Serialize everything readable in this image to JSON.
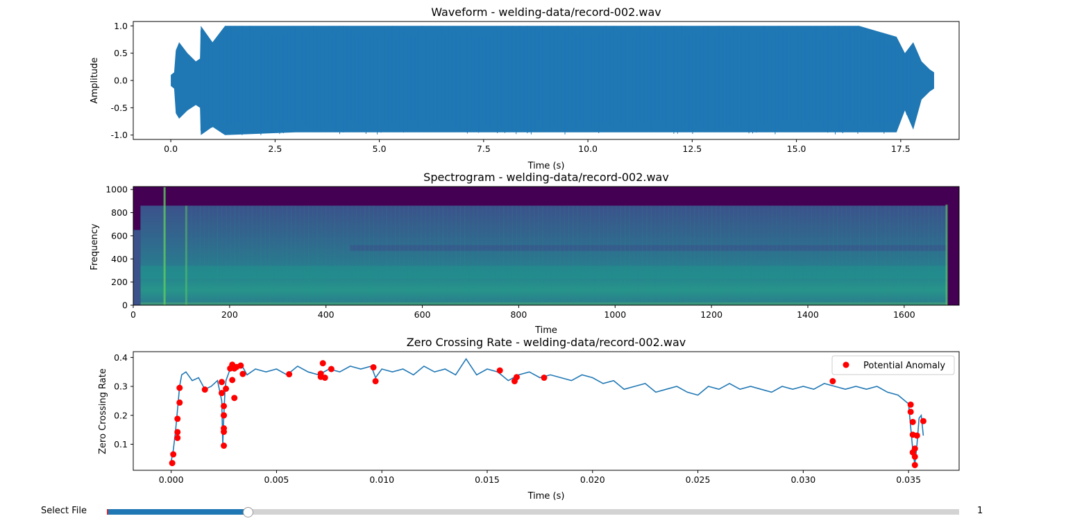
{
  "controls": {
    "label": "Select File",
    "value_label": "1",
    "slider_fraction": 0.165,
    "accent_color": "#1f77b4"
  },
  "chart_data": [
    {
      "type": "line",
      "title": "Waveform - welding-data/record-002.wav",
      "xlabel": "Time (s)",
      "ylabel": "Amplitude",
      "xlim": [
        -0.9,
        18.9
      ],
      "ylim": [
        -1.08,
        1.08
      ],
      "xticks": [
        "0.0",
        "2.5",
        "5.0",
        "7.5",
        "10.0",
        "12.5",
        "15.0",
        "17.5"
      ],
      "xtick_values": [
        0,
        2.5,
        5,
        7.5,
        10,
        12.5,
        15,
        17.5
      ],
      "yticks": [
        "-1.0",
        "-0.5",
        "0.0",
        "0.5",
        "1.0"
      ],
      "ytick_values": [
        -1,
        -0.5,
        0,
        0.5,
        1
      ],
      "color": "#1f77b4",
      "envelope": {
        "t": [
          0.0,
          0.08,
          0.12,
          0.2,
          0.4,
          0.6,
          0.7,
          0.72,
          1.0,
          1.3,
          3.0,
          6.0,
          9.0,
          12.0,
          15.0,
          16.5,
          17.4,
          17.6,
          17.8,
          18.0,
          18.2,
          18.3
        ],
        "upper": [
          0.1,
          0.15,
          0.55,
          0.7,
          0.5,
          0.35,
          0.4,
          1.0,
          0.7,
          1.0,
          1.0,
          1.0,
          1.0,
          1.0,
          1.0,
          1.0,
          0.8,
          0.5,
          0.7,
          0.35,
          0.2,
          0.15
        ],
        "lower": [
          -0.1,
          -0.15,
          -0.6,
          -0.7,
          -0.55,
          -0.45,
          -0.5,
          -1.0,
          -0.85,
          -1.0,
          -0.95,
          -0.95,
          -0.95,
          -0.95,
          -0.95,
          -0.95,
          -0.95,
          -0.55,
          -0.9,
          -0.35,
          -0.2,
          -0.15
        ]
      }
    },
    {
      "type": "heatmap",
      "title": "Spectrogram - welding-data/record-002.wav",
      "xlabel": "Time",
      "ylabel": "Frequency",
      "xlim": [
        0,
        1714
      ],
      "ylim": [
        0,
        1025
      ],
      "xticks": [
        "0",
        "200",
        "400",
        "600",
        "800",
        "1000",
        "1200",
        "1400",
        "1600"
      ],
      "xtick_values": [
        0,
        200,
        400,
        600,
        800,
        1000,
        1200,
        1400,
        1600
      ],
      "yticks": [
        "0",
        "200",
        "400",
        "600",
        "800",
        "1000"
      ],
      "ytick_values": [
        0,
        200,
        400,
        600,
        800,
        1000
      ],
      "colormap": "viridis",
      "colors": {
        "background": "#440154",
        "body": "#31688e",
        "band": "#21918c",
        "bright": "#5ec962"
      }
    },
    {
      "type": "line",
      "title": "Zero Crossing Rate - welding-data/record-002.wav",
      "xlabel": "Time (s)",
      "ylabel": "Zero Crossing Rate",
      "xlim": [
        -0.0018,
        0.0374
      ],
      "ylim": [
        0.01,
        0.42
      ],
      "xticks": [
        "0.000",
        "0.005",
        "0.010",
        "0.015",
        "0.020",
        "0.025",
        "0.030",
        "0.035"
      ],
      "xtick_values": [
        0,
        0.005,
        0.01,
        0.015,
        0.02,
        0.025,
        0.03,
        0.035
      ],
      "yticks": [
        "0.1",
        "0.2",
        "0.3",
        "0.4"
      ],
      "ytick_values": [
        0.1,
        0.2,
        0.3,
        0.4
      ],
      "legend": {
        "position": "top-right",
        "entries": [
          "Potential Anomaly"
        ]
      },
      "line_color": "#1f77b4",
      "anomaly_color": "#ff0000",
      "line": {
        "x": [
          0.0,
          0.0001,
          0.0002,
          0.0003,
          0.0004,
          0.0005,
          0.0007,
          0.001,
          0.0013,
          0.0016,
          0.0019,
          0.0022,
          0.0024,
          0.00245,
          0.0025,
          0.00255,
          0.0026,
          0.0028,
          0.003,
          0.0033,
          0.0036,
          0.004,
          0.0045,
          0.005,
          0.0055,
          0.006,
          0.0065,
          0.007,
          0.0075,
          0.008,
          0.0085,
          0.009,
          0.0095,
          0.0097,
          0.01,
          0.0105,
          0.011,
          0.0115,
          0.012,
          0.0125,
          0.013,
          0.0135,
          0.014,
          0.0145,
          0.015,
          0.0155,
          0.016,
          0.0165,
          0.017,
          0.0175,
          0.018,
          0.0185,
          0.019,
          0.0195,
          0.02,
          0.0205,
          0.021,
          0.0215,
          0.022,
          0.0225,
          0.023,
          0.0235,
          0.024,
          0.0245,
          0.025,
          0.0255,
          0.026,
          0.0265,
          0.027,
          0.0275,
          0.028,
          0.0285,
          0.029,
          0.0295,
          0.03,
          0.0305,
          0.031,
          0.0315,
          0.032,
          0.0325,
          0.033,
          0.0335,
          0.034,
          0.0345,
          0.035,
          0.0351,
          0.0352,
          0.0353,
          0.0354,
          0.0355,
          0.0356,
          0.0357
        ],
        "y": [
          0.04,
          0.08,
          0.14,
          0.22,
          0.3,
          0.34,
          0.35,
          0.32,
          0.33,
          0.29,
          0.3,
          0.32,
          0.25,
          0.1,
          0.2,
          0.28,
          0.32,
          0.36,
          0.37,
          0.38,
          0.34,
          0.36,
          0.35,
          0.36,
          0.34,
          0.37,
          0.35,
          0.34,
          0.36,
          0.35,
          0.37,
          0.36,
          0.37,
          0.33,
          0.36,
          0.35,
          0.36,
          0.34,
          0.37,
          0.35,
          0.36,
          0.34,
          0.395,
          0.34,
          0.36,
          0.35,
          0.32,
          0.34,
          0.35,
          0.33,
          0.34,
          0.33,
          0.32,
          0.34,
          0.33,
          0.31,
          0.32,
          0.29,
          0.3,
          0.31,
          0.28,
          0.29,
          0.3,
          0.28,
          0.27,
          0.3,
          0.29,
          0.31,
          0.29,
          0.3,
          0.29,
          0.28,
          0.3,
          0.29,
          0.3,
          0.29,
          0.31,
          0.3,
          0.29,
          0.3,
          0.29,
          0.3,
          0.28,
          0.27,
          0.24,
          0.16,
          0.08,
          0.03,
          0.1,
          0.19,
          0.2,
          0.13
        ]
      },
      "anomalies": {
        "x": [
          5e-05,
          0.0001,
          0.0003,
          0.0003,
          0.0003,
          0.0004,
          0.0004,
          0.0016,
          0.0024,
          0.0024,
          0.0025,
          0.0025,
          0.0025,
          0.0025,
          0.0025,
          0.0025,
          0.0026,
          0.0028,
          0.0029,
          0.0029,
          0.003,
          0.003,
          0.0031,
          0.0033,
          0.0034,
          0.0056,
          0.0071,
          0.0071,
          0.0072,
          0.0073,
          0.0076,
          0.0096,
          0.0097,
          0.0156,
          0.0163,
          0.0164,
          0.0177,
          0.0314,
          0.0351,
          0.0351,
          0.0352,
          0.0352,
          0.0352,
          0.0353,
          0.0353,
          0.0353,
          0.0354,
          0.0357
        ],
        "y": [
          0.035,
          0.065,
          0.122,
          0.142,
          0.188,
          0.244,
          0.295,
          0.289,
          0.315,
          0.277,
          0.2,
          0.155,
          0.143,
          0.095,
          0.232,
          0.2,
          0.292,
          0.362,
          0.375,
          0.322,
          0.362,
          0.26,
          0.367,
          0.372,
          0.343,
          0.342,
          0.344,
          0.333,
          0.38,
          0.33,
          0.36,
          0.366,
          0.318,
          0.355,
          0.318,
          0.332,
          0.33,
          0.318,
          0.237,
          0.212,
          0.177,
          0.133,
          0.072,
          0.057,
          0.085,
          0.028,
          0.13,
          0.18
        ]
      }
    }
  ]
}
